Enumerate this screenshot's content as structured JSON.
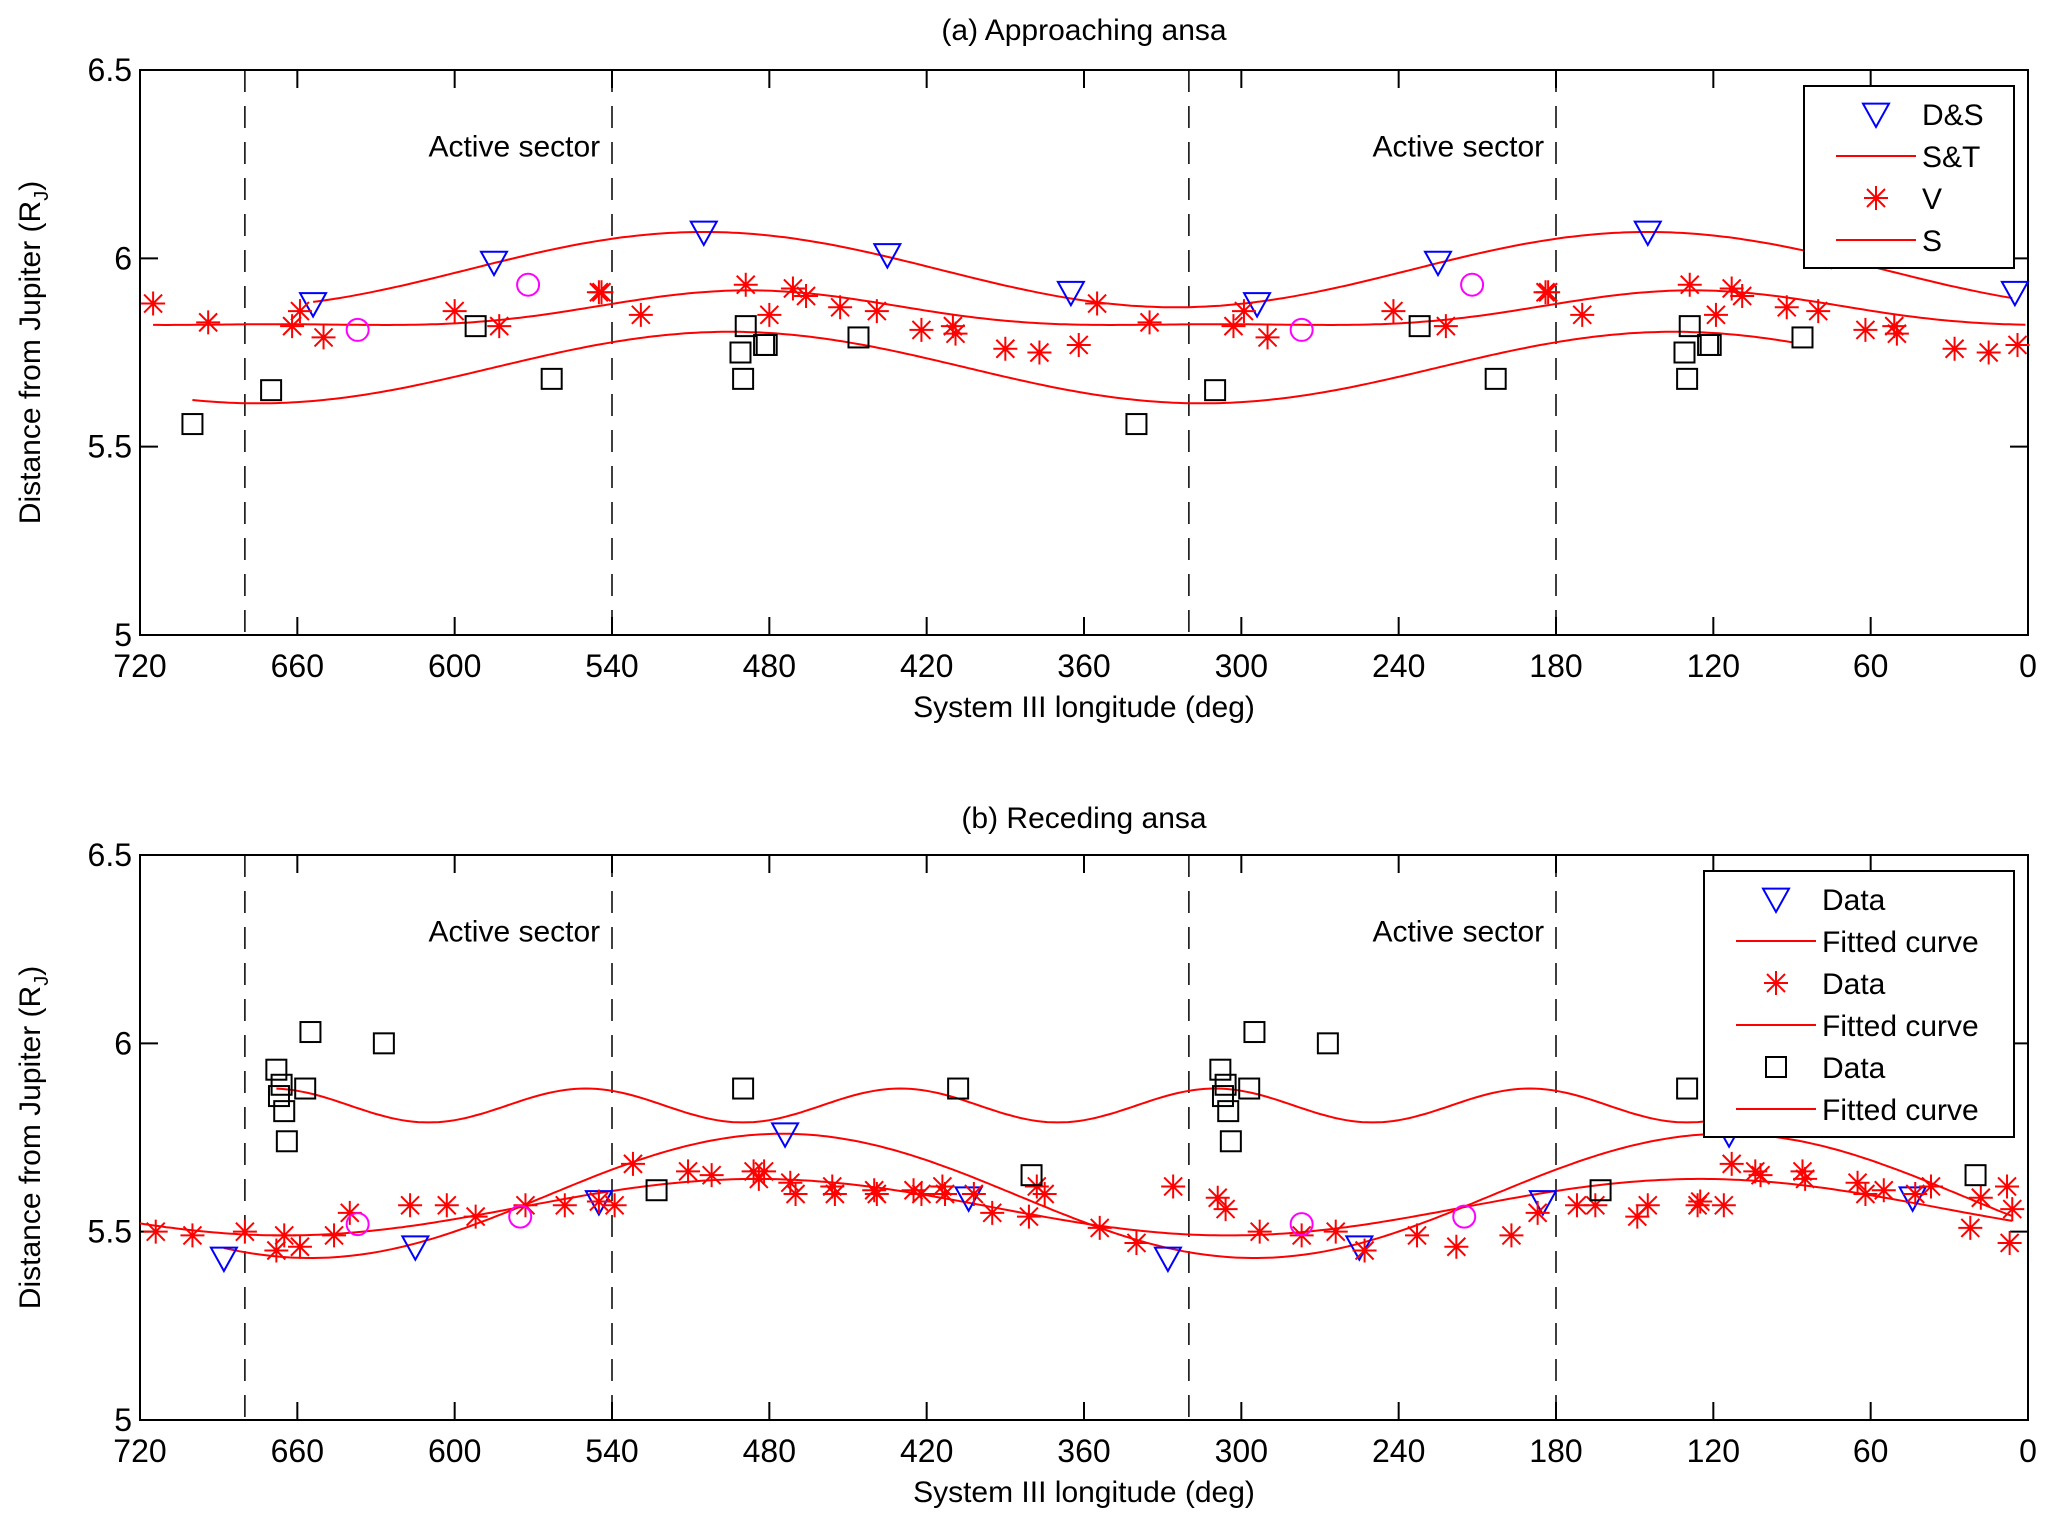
{
  "chart_data": [
    {
      "type": "scatter",
      "title": "(a) Approaching ansa",
      "xlabel": "System III longitude (deg)",
      "ylabel": "Distance from Jupiter (R_J)",
      "ylabel_main": "Distance from Jupiter (R",
      "ylabel_sub": "J",
      "ylabel_close": ")",
      "xlim": [
        720,
        0
      ],
      "ylim": [
        5,
        6.5
      ],
      "xticks": [
        720,
        660,
        600,
        540,
        480,
        420,
        360,
        300,
        240,
        180,
        120,
        60,
        0
      ],
      "yticks": [
        5,
        5.5,
        6,
        6.5
      ],
      "ytick_labels": [
        "5",
        "5.5",
        "6",
        "6.5"
      ],
      "grid": false,
      "sector_lines": [
        680,
        540,
        320,
        180
      ],
      "annotations": [
        {
          "text": "Active sector",
          "x": 610,
          "y": 6.3
        },
        {
          "text": "Active sector",
          "x": 250,
          "y": 6.3
        }
      ],
      "legend": {
        "placement": "top-right",
        "entries": [
          {
            "label": "D&S",
            "marker": "triangle-down",
            "color": "#0000ff"
          },
          {
            "label": "S&T",
            "marker": "line",
            "color": "#ff0000"
          },
          {
            "label": "V",
            "marker": "asterisk",
            "color": "#ff0000"
          },
          {
            "label": "S",
            "marker": "line",
            "color": "#ff0000"
          }
        ]
      },
      "series": [
        {
          "name": "D&S",
          "marker": "triangle-down",
          "color": "#0000ff",
          "x": [
            654,
            585,
            505,
            435,
            365,
            294,
            225,
            145,
            75,
            5
          ],
          "y": [
            5.88,
            5.99,
            6.07,
            6.01,
            5.91,
            5.88,
            5.99,
            6.07,
            6.01,
            5.91
          ]
        },
        {
          "name": "V",
          "marker": "asterisk",
          "color": "#ff0000",
          "x": [
            715,
            694,
            662,
            659,
            650,
            600,
            583,
            545,
            544,
            529,
            489,
            480,
            471,
            466,
            453,
            439,
            422,
            410,
            409,
            390,
            377,
            362,
            355,
            335,
            303,
            299,
            290,
            242,
            222,
            184,
            183,
            170,
            129,
            119,
            113,
            109,
            92,
            80,
            62,
            51,
            50,
            28,
            15,
            4
          ],
          "y": [
            5.88,
            5.83,
            5.82,
            5.86,
            5.79,
            5.86,
            5.82,
            5.91,
            5.91,
            5.85,
            5.93,
            5.85,
            5.92,
            5.9,
            5.87,
            5.86,
            5.81,
            5.82,
            5.8,
            5.76,
            5.75,
            5.77,
            5.88,
            5.83,
            5.82,
            5.86,
            5.79,
            5.86,
            5.82,
            5.91,
            5.91,
            5.85,
            5.93,
            5.85,
            5.92,
            5.9,
            5.87,
            5.86,
            5.81,
            5.82,
            5.8,
            5.76,
            5.75,
            5.77
          ]
        },
        {
          "name": "S",
          "marker": "square",
          "color": "#000000",
          "x": [
            700,
            670,
            592,
            563,
            491,
            490,
            489,
            482,
            481,
            446,
            340,
            310,
            232,
            203,
            131,
            130,
            129,
            122,
            121,
            86
          ],
          "y": [
            5.56,
            5.65,
            5.82,
            5.68,
            5.75,
            5.68,
            5.82,
            5.77,
            5.77,
            5.79,
            5.56,
            5.65,
            5.82,
            5.68,
            5.75,
            5.68,
            5.82,
            5.77,
            5.77,
            5.79
          ]
        },
        {
          "name": "circle",
          "marker": "circle",
          "color": "#ff00ff",
          "x": [
            637,
            572,
            277,
            212
          ],
          "y": [
            5.81,
            5.93,
            5.81,
            5.93
          ]
        }
      ],
      "curves": [
        {
          "name": "D&S fit",
          "color": "#ff0000",
          "x_range": [
            654,
            5
          ],
          "mean": 5.97,
          "amp": 0.1,
          "period": 360,
          "peak_x": 145
        },
        {
          "name": "S&T",
          "color": "#ff0000",
          "x_range": [
            715,
            0
          ],
          "mean": 5.855,
          "amp": 0.045,
          "period": 360,
          "peak_x": 128,
          "harmonic_amp": 0.015
        },
        {
          "name": "S",
          "color": "#ff0000",
          "x_range": [
            700,
            90
          ],
          "mean": 5.71,
          "amp": 0.095,
          "period": 360,
          "peak_x": 135
        }
      ]
    },
    {
      "type": "scatter",
      "title": "(b) Receding ansa",
      "xlabel": "System III longitude (deg)",
      "ylabel": "Distance from Jupiter (R_J)",
      "ylabel_main": "Distance from Jupiter (R",
      "ylabel_sub": "J",
      "ylabel_close": ")",
      "xlim": [
        720,
        0
      ],
      "ylim": [
        5,
        6.5
      ],
      "xticks": [
        720,
        660,
        600,
        540,
        480,
        420,
        360,
        300,
        240,
        180,
        120,
        60,
        0
      ],
      "yticks": [
        5,
        5.5,
        6,
        6.5
      ],
      "ytick_labels": [
        "5",
        "5.5",
        "6",
        "6.5"
      ],
      "grid": false,
      "sector_lines": [
        680,
        540,
        320,
        180
      ],
      "annotations": [
        {
          "text": "Active sector",
          "x": 610,
          "y": 6.3
        },
        {
          "text": "Active sector",
          "x": 250,
          "y": 6.3
        }
      ],
      "legend": {
        "placement": "top-right",
        "entries": [
          {
            "label": "Data",
            "marker": "triangle-down",
            "color": "#0000ff"
          },
          {
            "label": "Fitted curve",
            "marker": "line",
            "color": "#ff0000"
          },
          {
            "label": "Data",
            "marker": "asterisk",
            "color": "#ff0000"
          },
          {
            "label": "Fitted curve",
            "marker": "line",
            "color": "#ff0000"
          },
          {
            "label": "Data",
            "marker": "square",
            "color": "#000000"
          },
          {
            "label": "Fitted curve",
            "marker": "line",
            "color": "#ff0000"
          }
        ]
      },
      "series": [
        {
          "name": "Data (triangles)",
          "marker": "triangle-down",
          "color": "#0000ff",
          "x": [
            688,
            615,
            545,
            474,
            404,
            328,
            255,
            185,
            114,
            44
          ],
          "y": [
            5.43,
            5.46,
            5.58,
            5.76,
            5.59,
            5.43,
            5.46,
            5.58,
            5.76,
            5.59
          ]
        },
        {
          "name": "Data (asterisks)",
          "marker": "asterisk",
          "color": "#ff0000",
          "x": [
            714,
            700,
            680,
            668,
            665,
            659,
            646,
            640,
            617,
            603,
            592,
            573,
            558,
            545,
            539,
            532,
            511,
            502,
            486,
            484,
            482,
            472,
            470,
            456,
            455,
            440,
            439,
            425,
            422,
            414,
            413,
            402,
            395,
            381,
            378,
            375,
            354,
            340,
            326,
            309,
            306,
            293,
            277,
            264,
            253,
            233,
            218,
            197,
            187,
            172,
            165,
            149,
            145,
            126,
            125,
            116,
            113,
            104,
            102,
            86,
            85,
            65,
            62,
            55,
            43,
            37,
            22,
            18,
            8,
            7,
            6
          ],
          "y": [
            5.5,
            5.49,
            5.5,
            5.45,
            5.49,
            5.46,
            5.49,
            5.55,
            5.57,
            5.57,
            5.54,
            5.57,
            5.57,
            5.58,
            5.57,
            5.68,
            5.66,
            5.65,
            5.66,
            5.64,
            5.66,
            5.63,
            5.6,
            5.62,
            5.6,
            5.61,
            5.6,
            5.61,
            5.6,
            5.62,
            5.6,
            5.6,
            5.55,
            5.54,
            5.62,
            5.6,
            5.51,
            5.47,
            5.62,
            5.59,
            5.56,
            5.5,
            5.49,
            5.5,
            5.45,
            5.49,
            5.46,
            5.49,
            5.55,
            5.57,
            5.57,
            5.54,
            5.57,
            5.57,
            5.58,
            5.57,
            5.68,
            5.66,
            5.65,
            5.66,
            5.64,
            5.63,
            5.6,
            5.61,
            5.6,
            5.62,
            5.51,
            5.59,
            5.62,
            5.47,
            5.56
          ]
        },
        {
          "name": "Data (squares)",
          "marker": "square",
          "color": "#000000",
          "x": [
            668,
            667,
            666,
            665,
            664,
            657,
            655,
            627,
            523,
            490,
            408,
            380,
            308,
            307,
            306,
            305,
            304,
            297,
            295,
            267,
            163,
            130,
            48,
            20
          ],
          "y": [
            5.93,
            5.86,
            5.89,
            5.82,
            5.74,
            5.88,
            6.03,
            6.0,
            5.61,
            5.88,
            5.88,
            5.65,
            5.93,
            5.86,
            5.89,
            5.82,
            5.74,
            5.88,
            6.03,
            6.0,
            5.61,
            5.88,
            5.88,
            5.65
          ]
        },
        {
          "name": "circle",
          "marker": "circle",
          "color": "#ff00ff",
          "x": [
            637,
            575,
            277,
            215
          ],
          "y": [
            5.52,
            5.54,
            5.52,
            5.54
          ]
        }
      ],
      "curves": [
        {
          "name": "Fitted curve (triangles)",
          "color": "#ff0000",
          "x_range": [
            688,
            5
          ],
          "mean": 5.595,
          "amp": 0.165,
          "period": 360,
          "peak_x": 115
        },
        {
          "name": "Fitted curve (asterisks)",
          "color": "#ff0000",
          "x_range": [
            720,
            5
          ],
          "mean": 5.565,
          "amp": 0.075,
          "period": 360,
          "peak_x": 125
        },
        {
          "name": "Fitted curve (squares)",
          "color": "#ff0000",
          "x_range": [
            668,
            85
          ],
          "mean": 5.835,
          "amp": 0.045,
          "period": 120,
          "peak_x": 190
        }
      ]
    }
  ]
}
